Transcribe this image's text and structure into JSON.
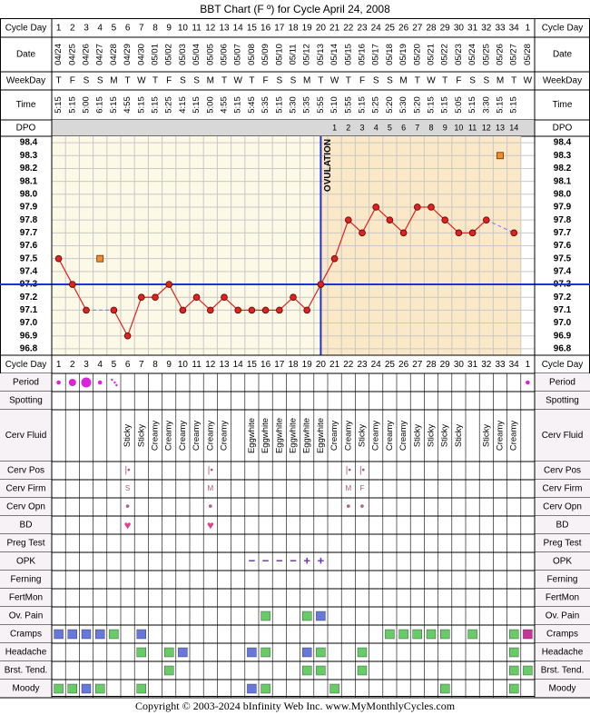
{
  "title": "BBT Chart (F º) for Cycle April 24, 2008",
  "copyright": "Copyright © 2003-2024 bInfinity Web Inc.     www.MyMonthlyCycles.com",
  "colors": {
    "pre_bg": "#fcf9e6",
    "post_bg": "#fbe8c6",
    "coverline": "#2233cc",
    "temp_line": "#dd2222",
    "temp_dot": "#dd2222",
    "extra_dot": "#f08a30",
    "grid": "#c8c8c8",
    "green": "#66cc66",
    "blue": "#6677dd",
    "magenta": "#cc3399",
    "period": "#dd22dd",
    "heart": "#dd4488",
    "opk": "#6633aa",
    "label_bg": "#f6f2f6"
  },
  "labels": {
    "cycle_day": "Cycle Day",
    "date": "Date",
    "weekday": "WeekDay",
    "time": "Time",
    "dpo": "DPO",
    "ovulation": "OVULATION"
  },
  "cycle_days": [
    "1",
    "2",
    "3",
    "4",
    "5",
    "6",
    "7",
    "8",
    "9",
    "10",
    "11",
    "12",
    "13",
    "14",
    "15",
    "16",
    "17",
    "18",
    "19",
    "20",
    "21",
    "22",
    "23",
    "24",
    "25",
    "26",
    "27",
    "28",
    "29",
    "30",
    "31",
    "32",
    "33",
    "34",
    "1"
  ],
  "dates": [
    "04/24",
    "04/25",
    "04/26",
    "04/27",
    "04/28",
    "04/29",
    "04/30",
    "05/01",
    "05/02",
    "05/03",
    "05/04",
    "05/05",
    "05/06",
    "05/07",
    "05/08",
    "05/09",
    "05/10",
    "05/11",
    "05/12",
    "05/13",
    "05/14",
    "05/15",
    "05/16",
    "05/17",
    "05/18",
    "05/19",
    "05/20",
    "05/21",
    "05/22",
    "05/23",
    "05/24",
    "05/25",
    "05/26",
    "05/27",
    "05/28"
  ],
  "weekdays": [
    "T",
    "F",
    "S",
    "S",
    "M",
    "T",
    "W",
    "T",
    "F",
    "S",
    "S",
    "M",
    "T",
    "W",
    "T",
    "F",
    "S",
    "S",
    "M",
    "T",
    "W",
    "T",
    "F",
    "S",
    "S",
    "M",
    "T",
    "W",
    "T",
    "F",
    "S",
    "S",
    "M",
    "T",
    "W"
  ],
  "times": [
    "5:15",
    "5:15",
    "5:00",
    "6:15",
    "5:15",
    "4:55",
    "5:15",
    "5:15",
    "5:25",
    "4:15",
    "5:15",
    "5:00",
    "4:55",
    "5:15",
    "5:45",
    "5:35",
    "5:15",
    "5:30",
    "5:35",
    "5:55",
    "5:10",
    "5:55",
    "5:15",
    "5:25",
    "5:20",
    "5:30",
    "5:20",
    "5:15",
    "5:15",
    "5:05",
    "5:15",
    "3:30",
    "5:15",
    "5:15",
    ""
  ],
  "dpo": [
    "",
    "",
    "",
    "",
    "",
    "",
    "",
    "",
    "",
    "",
    "",
    "",
    "",
    "",
    "",
    "",
    "",
    "",
    "",
    "",
    "1",
    "2",
    "3",
    "4",
    "5",
    "6",
    "7",
    "8",
    "9",
    "10",
    "11",
    "12",
    "13",
    "14",
    ""
  ],
  "chart_data": {
    "type": "line",
    "title": "BBT Chart (F º) for Cycle April 24, 2008",
    "x": [
      "1",
      "2",
      "3",
      "4",
      "5",
      "6",
      "7",
      "8",
      "9",
      "10",
      "11",
      "12",
      "13",
      "14",
      "15",
      "16",
      "17",
      "18",
      "19",
      "20",
      "21",
      "22",
      "23",
      "24",
      "25",
      "26",
      "27",
      "28",
      "29",
      "30",
      "31",
      "32",
      "33",
      "34"
    ],
    "y_ticks": [
      "98.4",
      "98.3",
      "98.2",
      "98.1",
      "98.0",
      "97.9",
      "97.8",
      "97.7",
      "97.6",
      "97.5",
      "97.4",
      "97.3",
      "97.2",
      "97.1",
      "97.0",
      "96.9",
      "96.8"
    ],
    "ylim": [
      96.8,
      98.4
    ],
    "coverline": 97.3,
    "ovulation_day": 20,
    "series": [
      {
        "values": [
          97.5,
          97.3,
          97.1,
          null,
          97.1,
          96.9,
          97.2,
          97.2,
          97.3,
          97.1,
          97.2,
          97.1,
          97.2,
          97.1,
          97.1,
          97.1,
          97.1,
          97.2,
          97.1,
          97.3,
          97.5,
          97.8,
          97.7,
          97.9,
          97.8,
          97.7,
          97.9,
          97.9,
          97.8,
          97.7,
          97.7,
          97.8,
          null,
          97.7
        ]
      }
    ],
    "dashed_gaps": [
      [
        3,
        5
      ],
      [
        32,
        34
      ]
    ],
    "extra_points": [
      {
        "day": 4,
        "value": 97.5
      },
      {
        "day": 33,
        "value": 98.3
      }
    ],
    "grid": true
  },
  "rows": [
    {
      "label": "Period",
      "type": "period",
      "cells": {
        "1": "s",
        "2": "m",
        "3": "l",
        "4": "s",
        "5": "spot",
        "35": "s"
      }
    },
    {
      "label": "Spotting",
      "type": "empty",
      "cells": {}
    },
    {
      "label": "Cerv Fluid",
      "type": "text",
      "cells": {
        "6": "Sticky",
        "7": "Sticky",
        "8": "Creamy",
        "9": "Creamy",
        "10": "Creamy",
        "11": "Creamy",
        "12": "Creamy",
        "13": "Creamy",
        "15": "Eggwhite",
        "16": "Eggwhite",
        "17": "Eggwhite",
        "18": "Eggwhite",
        "19": "Eggwhite",
        "20": "Eggwhite",
        "21": "Creamy",
        "22": "Creamy",
        "23": "Sticky",
        "24": "Creamy",
        "25": "Creamy",
        "26": "Creamy",
        "27": "Sticky",
        "28": "Sticky",
        "29": "Sticky",
        "30": "Sticky",
        "32": "Sticky",
        "33": "Creamy",
        "34": "Creamy"
      }
    },
    {
      "label": "Cerv Pos",
      "type": "pos",
      "cells": {
        "6": "|•",
        "12": "|•",
        "22": "|•",
        "23": "|•"
      }
    },
    {
      "label": "Cerv Firm",
      "type": "char",
      "cells": {
        "6": "S",
        "12": "M",
        "22": "M",
        "23": "F"
      }
    },
    {
      "label": "Cerv Opn",
      "type": "dot",
      "cells": {
        "6": "•",
        "12": "•",
        "22": "•",
        "23": "•"
      }
    },
    {
      "label": "BD",
      "type": "heart",
      "cells": {
        "6": "♥",
        "12": "♥"
      }
    },
    {
      "label": "Preg Test",
      "type": "empty",
      "cells": {}
    },
    {
      "label": "OPK",
      "type": "opk",
      "cells": {
        "15": "−",
        "16": "−",
        "17": "−",
        "18": "−",
        "19": "+",
        "20": "+"
      }
    },
    {
      "label": "Ferning",
      "type": "empty",
      "cells": {}
    },
    {
      "label": "FertMon",
      "type": "empty",
      "cells": {}
    },
    {
      "label": "Ov. Pain",
      "type": "sq",
      "cells": {
        "16": "g",
        "19": "g",
        "20": "b"
      }
    },
    {
      "label": "Cramps",
      "type": "sq",
      "cells": {
        "1": "b",
        "2": "b",
        "3": "b",
        "4": "b",
        "5": "g",
        "7": "b",
        "25": "g",
        "26": "g",
        "27": "g",
        "28": "g",
        "29": "g",
        "31": "g",
        "34": "g",
        "35": "m"
      }
    },
    {
      "label": "Headache",
      "type": "sq",
      "cells": {
        "7": "g",
        "9": "g",
        "10": "b",
        "15": "b",
        "16": "g",
        "19": "b",
        "20": "g",
        "23": "g",
        "34": "g"
      }
    },
    {
      "label": "Brst. Tend.",
      "type": "sq",
      "cells": {
        "9": "g",
        "19": "g",
        "20": "g",
        "23": "g",
        "34": "g",
        "35": "g"
      }
    },
    {
      "label": "Moody",
      "type": "sq",
      "cells": {
        "1": "g",
        "2": "g",
        "3": "b",
        "4": "g",
        "7": "g",
        "15": "b",
        "16": "g",
        "21": "g",
        "29": "g",
        "34": "g"
      }
    }
  ]
}
